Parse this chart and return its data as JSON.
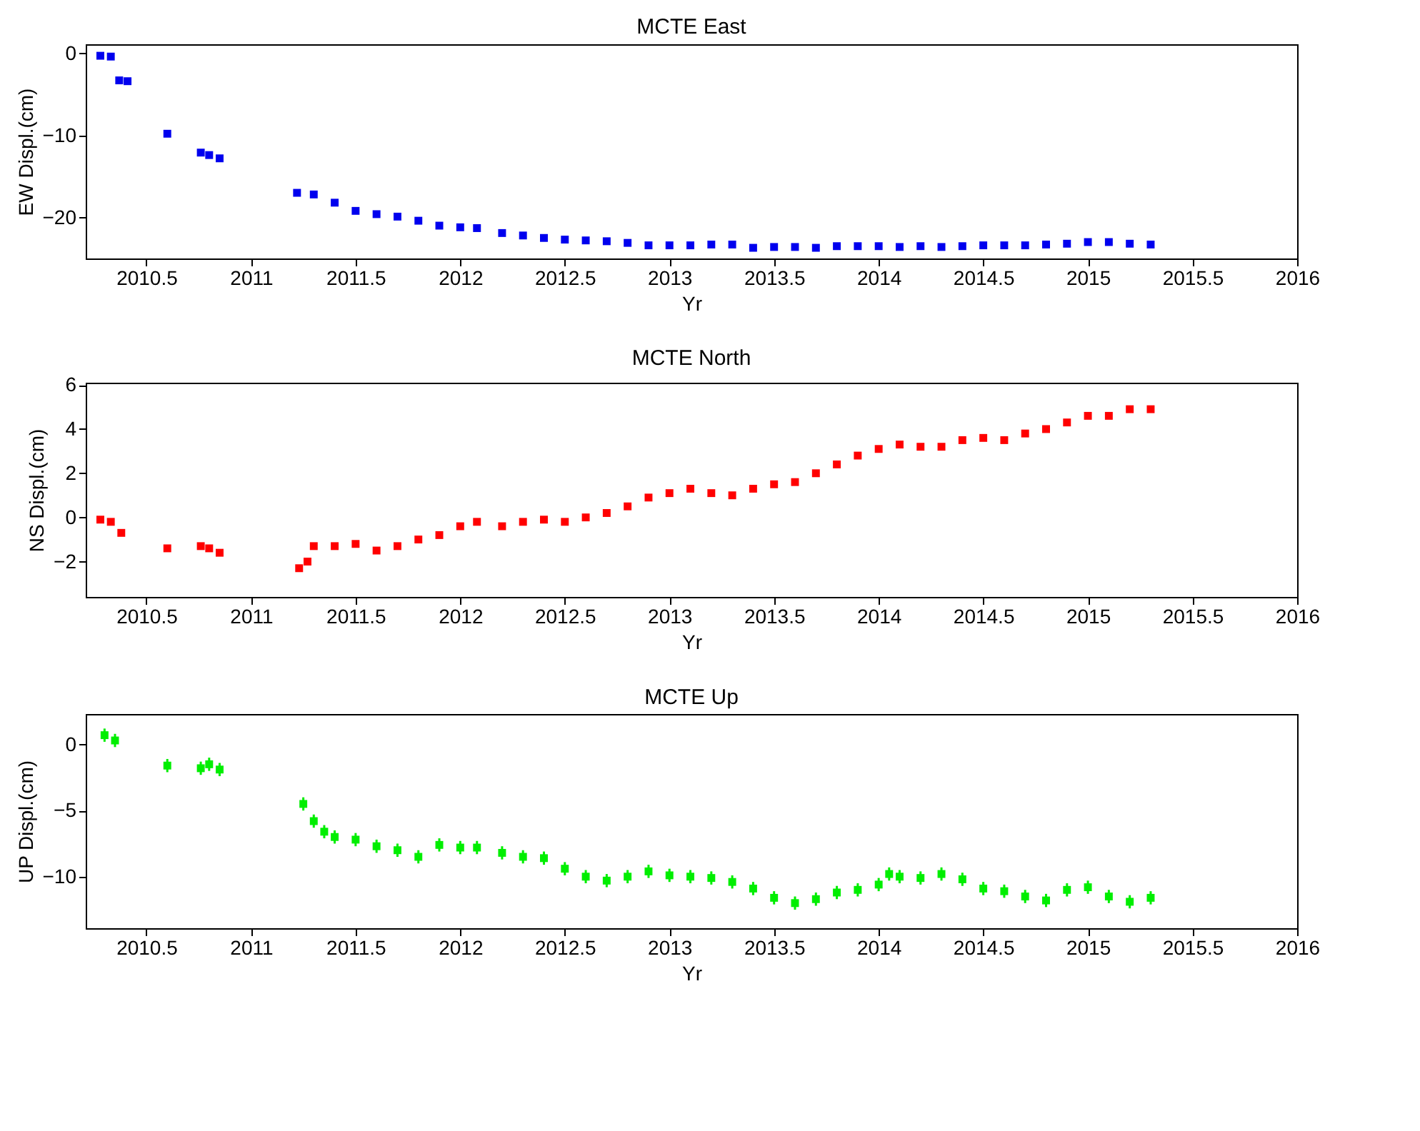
{
  "chart_data": [
    {
      "type": "scatter",
      "title": "MCTE     East",
      "xlabel": "Yr",
      "ylabel": "EW Displ.(cm)",
      "xlim": [
        2010.21,
        2016
      ],
      "xticks": [
        2010.5,
        2011,
        2011.5,
        2012,
        2012.5,
        2013,
        2013.5,
        2014,
        2014.5,
        2015,
        2015.5,
        2016
      ],
      "ylim": [
        -25,
        1.1
      ],
      "yticks": [
        -20,
        -10,
        0
      ],
      "grid": false,
      "legend": false,
      "series": [
        {
          "color": "#0000ee",
          "x": [
            2010.28,
            2010.33,
            2010.37,
            2010.41,
            2010.6,
            2010.76,
            2010.8,
            2010.85,
            2011.22,
            2011.3,
            2011.4,
            2011.5,
            2011.6,
            2011.7,
            2011.8,
            2011.9,
            2012.0,
            2012.08,
            2012.2,
            2012.3,
            2012.4,
            2012.5,
            2012.6,
            2012.7,
            2012.8,
            2012.9,
            2013.0,
            2013.1,
            2013.2,
            2013.3,
            2013.4,
            2013.5,
            2013.6,
            2013.7,
            2013.8,
            2013.9,
            2014.0,
            2014.1,
            2014.2,
            2014.3,
            2014.4,
            2014.5,
            2014.6,
            2014.7,
            2014.8,
            2014.9,
            2015.0,
            2015.1,
            2015.2,
            2015.3
          ],
          "values": [
            -0.3,
            -0.4,
            -3.3,
            -3.4,
            -9.8,
            -12.1,
            -12.4,
            -12.8,
            -17.0,
            -17.2,
            -18.2,
            -19.2,
            -19.6,
            -19.9,
            -20.4,
            -21.0,
            -21.2,
            -21.3,
            -21.9,
            -22.2,
            -22.5,
            -22.7,
            -22.8,
            -22.9,
            -23.1,
            -23.4,
            -23.4,
            -23.4,
            -23.3,
            -23.3,
            -23.7,
            -23.6,
            -23.6,
            -23.7,
            -23.5,
            -23.5,
            -23.5,
            -23.6,
            -23.5,
            -23.6,
            -23.5,
            -23.4,
            -23.4,
            -23.4,
            -23.3,
            -23.2,
            -23.0,
            -23.0,
            -23.2,
            -23.3
          ],
          "errors": [
            0.3,
            0.3,
            0.3,
            0.3,
            0.3,
            0.3,
            0.3,
            0.3,
            0.3,
            0.3,
            0.3,
            0.3,
            0.3,
            0.3,
            0.3,
            0.3,
            0.3,
            0.3,
            0.3,
            0.3,
            0.3,
            0.3,
            0.3,
            0.3,
            0.3,
            0.3,
            0.3,
            0.3,
            0.3,
            0.3,
            0.3,
            0.3,
            0.3,
            0.3,
            0.3,
            0.3,
            0.3,
            0.3,
            0.3,
            0.3,
            0.3,
            0.3,
            0.3,
            0.3,
            0.3,
            0.3,
            0.3,
            0.3,
            0.3,
            0.3
          ]
        }
      ]
    },
    {
      "type": "scatter",
      "title": "MCTE     North",
      "xlabel": "Yr",
      "ylabel": "NS Displ.(cm)",
      "xlim": [
        2010.21,
        2016
      ],
      "xticks": [
        2010.5,
        2011,
        2011.5,
        2012,
        2012.5,
        2013,
        2013.5,
        2014,
        2014.5,
        2015,
        2015.5,
        2016
      ],
      "ylim": [
        -3.6,
        6.1
      ],
      "yticks": [
        -2,
        0,
        2,
        4,
        6
      ],
      "grid": false,
      "legend": false,
      "series": [
        {
          "color": "#ff0000",
          "x": [
            2010.28,
            2010.33,
            2010.38,
            2010.6,
            2010.76,
            2010.8,
            2010.85,
            2011.23,
            2011.27,
            2011.3,
            2011.4,
            2011.5,
            2011.6,
            2011.7,
            2011.8,
            2011.9,
            2012.0,
            2012.08,
            2012.2,
            2012.3,
            2012.4,
            2012.5,
            2012.6,
            2012.7,
            2012.8,
            2012.9,
            2013.0,
            2013.1,
            2013.2,
            2013.3,
            2013.4,
            2013.5,
            2013.6,
            2013.7,
            2013.8,
            2013.9,
            2014.0,
            2014.1,
            2014.2,
            2014.3,
            2014.4,
            2014.5,
            2014.6,
            2014.7,
            2014.8,
            2014.9,
            2015.0,
            2015.1,
            2015.2,
            2015.3
          ],
          "values": [
            -0.1,
            -0.2,
            -0.7,
            -1.4,
            -1.3,
            -1.4,
            -1.6,
            -2.3,
            -2.0,
            -1.3,
            -1.3,
            -1.2,
            -1.5,
            -1.3,
            -1.0,
            -0.8,
            -0.4,
            -0.2,
            -0.4,
            -0.2,
            -0.1,
            -0.2,
            0.0,
            0.2,
            0.5,
            0.9,
            1.1,
            1.3,
            1.1,
            1.0,
            1.3,
            1.5,
            1.6,
            2.0,
            2.4,
            2.8,
            3.1,
            3.3,
            3.2,
            3.2,
            3.5,
            3.6,
            3.5,
            3.8,
            4.0,
            4.3,
            4.6,
            4.6,
            4.9,
            4.9
          ],
          "errors": [
            0.15,
            0.15,
            0.15,
            0.15,
            0.15,
            0.15,
            0.15,
            0.15,
            0.15,
            0.15,
            0.15,
            0.15,
            0.15,
            0.15,
            0.15,
            0.15,
            0.15,
            0.15,
            0.15,
            0.15,
            0.15,
            0.15,
            0.15,
            0.15,
            0.15,
            0.15,
            0.15,
            0.15,
            0.15,
            0.15,
            0.15,
            0.15,
            0.15,
            0.15,
            0.15,
            0.15,
            0.15,
            0.15,
            0.15,
            0.15,
            0.15,
            0.15,
            0.15,
            0.15,
            0.15,
            0.15,
            0.15,
            0.15,
            0.15,
            0.15
          ]
        }
      ]
    },
    {
      "type": "scatter",
      "title": "MCTE     Up",
      "xlabel": "Yr",
      "ylabel": "UP Displ.(cm)",
      "xlim": [
        2010.21,
        2016
      ],
      "xticks": [
        2010.5,
        2011,
        2011.5,
        2012,
        2012.5,
        2013,
        2013.5,
        2014,
        2014.5,
        2015,
        2015.5,
        2016
      ],
      "ylim": [
        -13.9,
        2.3
      ],
      "yticks": [
        -10,
        -5,
        0
      ],
      "grid": false,
      "legend": false,
      "series": [
        {
          "color": "#00ee00",
          "x": [
            2010.3,
            2010.35,
            2010.6,
            2010.76,
            2010.8,
            2010.85,
            2011.25,
            2011.3,
            2011.35,
            2011.4,
            2011.5,
            2011.6,
            2011.7,
            2011.8,
            2011.9,
            2012.0,
            2012.08,
            2012.2,
            2012.3,
            2012.4,
            2012.5,
            2012.6,
            2012.7,
            2012.8,
            2012.9,
            2013.0,
            2013.1,
            2013.2,
            2013.3,
            2013.4,
            2013.5,
            2013.6,
            2013.7,
            2013.8,
            2013.9,
            2014.0,
            2014.05,
            2014.1,
            2014.2,
            2014.3,
            2014.4,
            2014.5,
            2014.6,
            2014.7,
            2014.8,
            2014.9,
            2015.0,
            2015.1,
            2015.2,
            2015.3
          ],
          "values": [
            0.7,
            0.3,
            -1.6,
            -1.8,
            -1.5,
            -1.9,
            -4.5,
            -5.8,
            -6.6,
            -7.0,
            -7.2,
            -7.7,
            -8.0,
            -8.5,
            -7.6,
            -7.8,
            -7.8,
            -8.2,
            -8.5,
            -8.6,
            -9.4,
            -10.0,
            -10.3,
            -10.0,
            -9.6,
            -9.9,
            -10.0,
            -10.1,
            -10.4,
            -10.9,
            -11.6,
            -12.0,
            -11.7,
            -11.2,
            -11.0,
            -10.6,
            -9.8,
            -10.0,
            -10.1,
            -9.8,
            -10.2,
            -10.9,
            -11.1,
            -11.5,
            -11.8,
            -11.0,
            -10.8,
            -11.5,
            -11.9,
            -11.6
          ],
          "errors": [
            0.5,
            0.5,
            0.5,
            0.5,
            0.5,
            0.5,
            0.5,
            0.5,
            0.5,
            0.5,
            0.5,
            0.5,
            0.5,
            0.5,
            0.5,
            0.5,
            0.5,
            0.5,
            0.5,
            0.5,
            0.5,
            0.5,
            0.5,
            0.5,
            0.5,
            0.5,
            0.5,
            0.5,
            0.5,
            0.5,
            0.5,
            0.5,
            0.5,
            0.5,
            0.5,
            0.5,
            0.5,
            0.5,
            0.5,
            0.5,
            0.5,
            0.5,
            0.5,
            0.5,
            0.5,
            0.5,
            0.5,
            0.5,
            0.5,
            0.5
          ]
        }
      ]
    }
  ]
}
